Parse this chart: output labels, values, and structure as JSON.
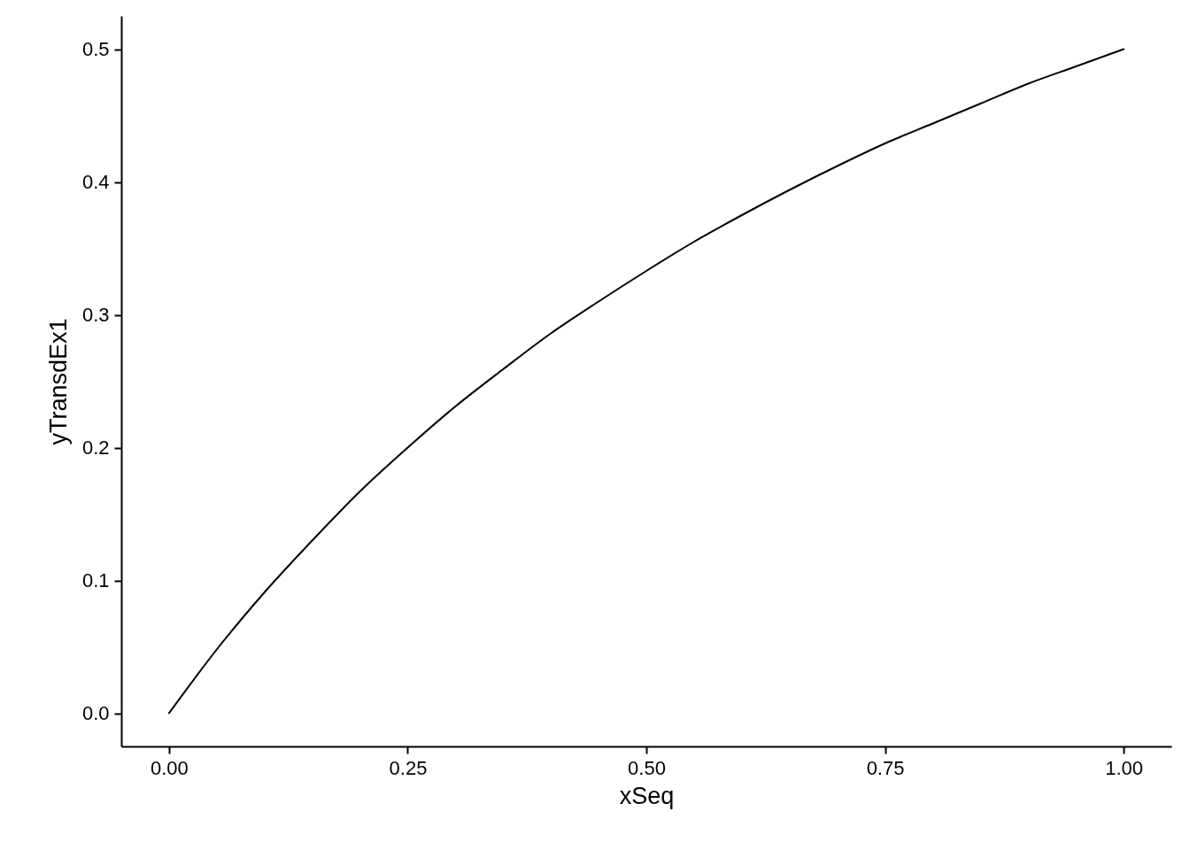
{
  "chart_data": {
    "type": "line",
    "xlabel": "xSeq",
    "ylabel": "yTransdEx1",
    "x": [
      0,
      0.05,
      0.1,
      0.15,
      0.2,
      0.25,
      0.3,
      0.35,
      0.4,
      0.45,
      0.5,
      0.55,
      0.6,
      0.65,
      0.7,
      0.75,
      0.8,
      0.85,
      0.9,
      0.95,
      1
    ],
    "series": [
      {
        "color": "#000000",
        "values": [
          0,
          0.048,
          0.091,
          0.13,
          0.167,
          0.2,
          0.231,
          0.259,
          0.286,
          0.31,
          0.333,
          0.355,
          0.375,
          0.394,
          0.412,
          0.429,
          0.444,
          0.459,
          0.474,
          0.487,
          0.5
        ]
      }
    ],
    "xlim": [
      -0.05,
      1.05
    ],
    "ylim": [
      -0.025,
      0.525
    ],
    "xticks": [
      {
        "value": 0,
        "label": "0.00"
      },
      {
        "value": 0.25,
        "label": "0.25"
      },
      {
        "value": 0.5,
        "label": "0.50"
      },
      {
        "value": 0.75,
        "label": "0.75"
      },
      {
        "value": 1,
        "label": "1.00"
      }
    ],
    "yticks": [
      {
        "value": 0,
        "label": "0.0"
      },
      {
        "value": 0.1,
        "label": "0.1"
      },
      {
        "value": 0.2,
        "label": "0.2"
      },
      {
        "value": 0.3,
        "label": "0.3"
      },
      {
        "value": 0.4,
        "label": "0.4"
      },
      {
        "value": 0.5,
        "label": "0.5"
      }
    ],
    "grid": false,
    "marker": "none",
    "line_style": "solid"
  }
}
